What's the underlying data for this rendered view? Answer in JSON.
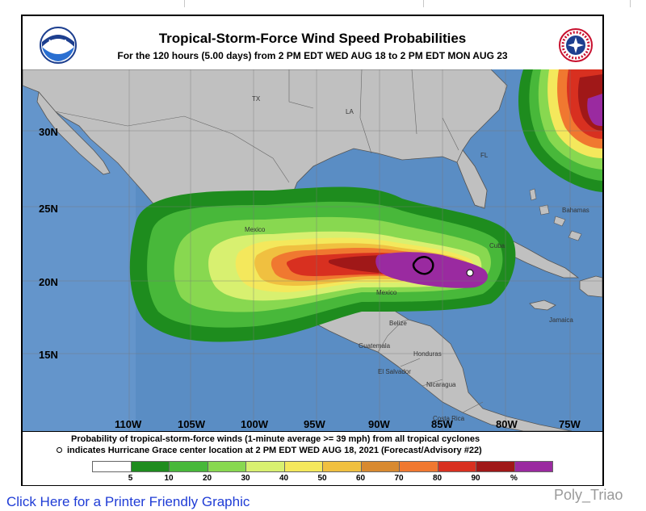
{
  "header": {
    "title": "Tropical-Storm-Force Wind Speed Probabilities",
    "subtitle": "For the 120 hours (5.00 days) from 2 PM EDT WED AUG 18 to 2 PM EDT MON AUG 23",
    "logo_left": "noaa-logo",
    "logo_right": "national-weather-service-logo",
    "logo_left_text": "NOAA",
    "logo_right_text": "NATIONAL WEATHER SERVICE"
  },
  "map": {
    "latitudes": [
      "30N",
      "25N",
      "20N",
      "15N"
    ],
    "longitudes": [
      "110W",
      "105W",
      "100W",
      "95W",
      "90W",
      "85W",
      "80W",
      "75W"
    ],
    "places": [
      "TX",
      "LA",
      "FL",
      "Mexico",
      "Cuba",
      "Bahamas",
      "Mexico",
      "Belize",
      "Jamaica",
      "Guatemala",
      "Honduras",
      "El Salvador",
      "Nicaragua",
      "Costa Rica"
    ],
    "center_marker": "hurricane-center-circle"
  },
  "caption": {
    "line1": "Probability of tropical-storm-force winds (1-minute average >= 39 mph) from all tropical cyclones",
    "line2": "indicates Hurricane Grace center location at 2 PM EDT WED AUG 18, 2021 (Forecast/Advisory #22)"
  },
  "legend": {
    "colors": [
      "#ffffff",
      "#1e8c1e",
      "#48b83a",
      "#88d850",
      "#d8f070",
      "#f4e85c",
      "#f0c040",
      "#d88a30",
      "#f07830",
      "#d83020",
      "#a01818",
      "#9a2aa0"
    ],
    "labels": [
      "5",
      "10",
      "20",
      "30",
      "40",
      "50",
      "60",
      "70",
      "80",
      "90",
      "%"
    ]
  },
  "footer": {
    "link_text": "Click Here for a Printer Friendly Graphic",
    "watermark": "Poly_Triao"
  }
}
